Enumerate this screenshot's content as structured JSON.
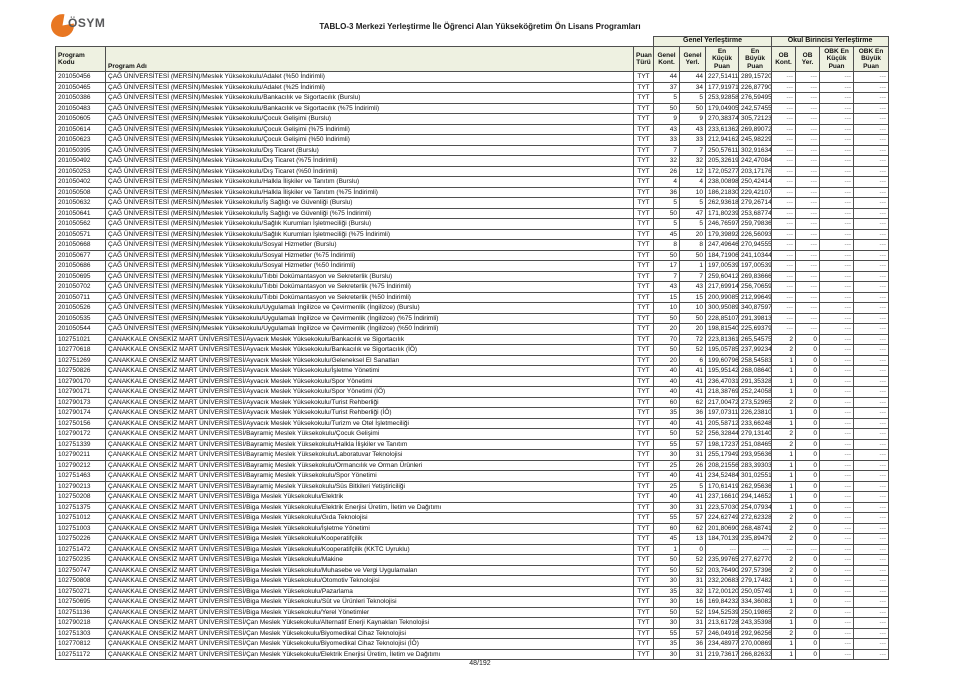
{
  "header": {
    "logo_text": "ÖSYM",
    "title": "TABLO-3 Merkezi Yerleştirme İle Öğrenci Alan Yükseköğretim Ön Lisans Programları"
  },
  "colors": {
    "header_bg": "#eef1e1",
    "border": "#4f4f4f",
    "logo_orange": "#e87722",
    "logo_gray": "#58595b"
  },
  "table": {
    "group_headers": {
      "genel": "Genel Yerleştirme",
      "okul": "Okul Birincisi Yerleştirme"
    },
    "columns": [
      "Program Kodu",
      "Program Adı",
      "Puan Türü",
      "Genel Kont.",
      "Genel Yerl.",
      "En Küçük Puan",
      "En Büyük Puan",
      "OB Kont.",
      "OB Yer.",
      "OBK En Küçük Puan",
      "OBK En Büyük Puan"
    ],
    "empty_value": "---",
    "rows": [
      [
        "201050456",
        "ÇAĞ ÜNİVERSİTESİ (MERSİN)/Meslek Yüksekokulu/Adalet (%50 İndirimli)",
        "TYT",
        "44",
        "44",
        "227,51411",
        "289,15720",
        "---",
        "---",
        "---",
        "---"
      ],
      [
        "201050465",
        "ÇAĞ ÜNİVERSİTESİ (MERSİN)/Meslek Yüksekokulu/Adalet (%25 İndirimli)",
        "TYT",
        "37",
        "34",
        "177,91971",
        "226,87790",
        "---",
        "---",
        "---",
        "---"
      ],
      [
        "201050386",
        "ÇAĞ ÜNİVERSİTESİ (MERSİN)/Meslek Yüksekokulu/Bankacılık ve Sigortacılık (Burslu)",
        "TYT",
        "5",
        "5",
        "253,92858",
        "276,59495",
        "---",
        "---",
        "---",
        "---"
      ],
      [
        "201050483",
        "ÇAĞ ÜNİVERSİTESİ (MERSİN)/Meslek Yüksekokulu/Bankacılık ve Sigortacılık (%75 İndirimli)",
        "TYT",
        "50",
        "50",
        "179,04905",
        "242,57455",
        "---",
        "---",
        "---",
        "---"
      ],
      [
        "201050605",
        "ÇAĞ ÜNİVERSİTESİ (MERSİN)/Meslek Yüksekokulu/Çocuk Gelişimi (Burslu)",
        "TYT",
        "9",
        "9",
        "270,38374",
        "305,72123",
        "---",
        "---",
        "---",
        "---"
      ],
      [
        "201050614",
        "ÇAĞ ÜNİVERSİTESİ (MERSİN)/Meslek Yüksekokulu/Çocuk Gelişimi (%75 İndirimli)",
        "TYT",
        "43",
        "43",
        "233,61362",
        "269,89072",
        "---",
        "---",
        "---",
        "---"
      ],
      [
        "201050623",
        "ÇAĞ ÜNİVERSİTESİ (MERSİN)/Meslek Yüksekokulu/Çocuk Gelişimi (%50 İndirimli)",
        "TYT",
        "33",
        "33",
        "212,94162",
        "245,98229",
        "---",
        "---",
        "---",
        "---"
      ],
      [
        "201050395",
        "ÇAĞ ÜNİVERSİTESİ (MERSİN)/Meslek Yüksekokulu/Dış Ticaret (Burslu)",
        "TYT",
        "7",
        "7",
        "250,57611",
        "302,91634",
        "---",
        "---",
        "---",
        "---"
      ],
      [
        "201050492",
        "ÇAĞ ÜNİVERSİTESİ (MERSİN)/Meslek Yüksekokulu/Dış Ticaret (%75 İndirimli)",
        "TYT",
        "32",
        "32",
        "205,32619",
        "242,47084",
        "---",
        "---",
        "---",
        "---"
      ],
      [
        "201050253",
        "ÇAĞ ÜNİVERSİTESİ (MERSİN)/Meslek Yüksekokulu/Dış Ticaret (%50 İndirimli)",
        "TYT",
        "26",
        "12",
        "172,05277",
        "203,17176",
        "---",
        "---",
        "---",
        "---"
      ],
      [
        "201050402",
        "ÇAĞ ÜNİVERSİTESİ (MERSİN)/Meslek Yüksekokulu/Halkla İlişkiler ve Tanıtım (Burslu)",
        "TYT",
        "4",
        "4",
        "238,00898",
        "250,42414",
        "---",
        "---",
        "---",
        "---"
      ],
      [
        "201050508",
        "ÇAĞ ÜNİVERSİTESİ (MERSİN)/Meslek Yüksekokulu/Halkla İlişkiler ve Tanıtım (%75 İndirimli)",
        "TYT",
        "36",
        "10",
        "186,21830",
        "229,42107",
        "---",
        "---",
        "---",
        "---"
      ],
      [
        "201050632",
        "ÇAĞ ÜNİVERSİTESİ (MERSİN)/Meslek Yüksekokulu/İş Sağlığı ve Güvenliği (Burslu)",
        "TYT",
        "5",
        "5",
        "262,93618",
        "279,26714",
        "---",
        "---",
        "---",
        "---"
      ],
      [
        "201050641",
        "ÇAĞ ÜNİVERSİTESİ (MERSİN)/Meslek Yüksekokulu/İş Sağlığı ve Güvenliği (%75 İndirimli)",
        "TYT",
        "50",
        "47",
        "171,80239",
        "253,68774",
        "---",
        "---",
        "---",
        "---"
      ],
      [
        "201050562",
        "ÇAĞ ÜNİVERSİTESİ (MERSİN)/Meslek Yüksekokulu/Sağlık Kurumları İşletmeciliği (Burslu)",
        "TYT",
        "5",
        "5",
        "246,76597",
        "259,79836",
        "---",
        "---",
        "---",
        "---"
      ],
      [
        "201050571",
        "ÇAĞ ÜNİVERSİTESİ (MERSİN)/Meslek Yüksekokulu/Sağlık Kurumları İşletmeciliği (%75 İndirimli)",
        "TYT",
        "45",
        "20",
        "179,39892",
        "226,56093",
        "---",
        "---",
        "---",
        "---"
      ],
      [
        "201050668",
        "ÇAĞ ÜNİVERSİTESİ (MERSİN)/Meslek Yüksekokulu/Sosyal Hizmetler (Burslu)",
        "TYT",
        "8",
        "8",
        "247,49646",
        "270,94555",
        "---",
        "---",
        "---",
        "---"
      ],
      [
        "201050677",
        "ÇAĞ ÜNİVERSİTESİ (MERSİN)/Meslek Yüksekokulu/Sosyal Hizmetler (%75 İndirimli)",
        "TYT",
        "50",
        "50",
        "184,71906",
        "241,10344",
        "---",
        "---",
        "---",
        "---"
      ],
      [
        "201050686",
        "ÇAĞ ÜNİVERSİTESİ (MERSİN)/Meslek Yüksekokulu/Sosyal Hizmetler (%50 İndirimli)",
        "TYT",
        "17",
        "1",
        "197,00539",
        "197,00539",
        "---",
        "---",
        "---",
        "---"
      ],
      [
        "201050695",
        "ÇAĞ ÜNİVERSİTESİ (MERSİN)/Meslek Yüksekokulu/Tıbbi Dokümantasyon ve Sekreterlik (Burslu)",
        "TYT",
        "7",
        "7",
        "259,60412",
        "269,83666",
        "---",
        "---",
        "---",
        "---"
      ],
      [
        "201050702",
        "ÇAĞ ÜNİVERSİTESİ (MERSİN)/Meslek Yüksekokulu/Tıbbi Dokümantasyon ve Sekreterlik (%75 İndirimli)",
        "TYT",
        "43",
        "43",
        "217,69914",
        "256,70659",
        "---",
        "---",
        "---",
        "---"
      ],
      [
        "201050711",
        "ÇAĞ ÜNİVERSİTESİ (MERSİN)/Meslek Yüksekokulu/Tıbbi Dokümantasyon ve Sekreterlik (%50 İndirimli)",
        "TYT",
        "15",
        "15",
        "200,99085",
        "212,99649",
        "---",
        "---",
        "---",
        "---"
      ],
      [
        "201050526",
        "ÇAĞ ÜNİVERSİTESİ (MERSİN)/Meslek Yüksekokulu/Uygulamalı İngilizce ve Çevirmenlik (İngilizce) (Burslu)",
        "TYT",
        "10",
        "10",
        "300,95089",
        "340,87597",
        "---",
        "---",
        "---",
        "---"
      ],
      [
        "201050535",
        "ÇAĞ ÜNİVERSİTESİ (MERSİN)/Meslek Yüksekokulu/Uygulamalı İngilizce ve Çevirmenlik (İngilizce) (%75 İndirimli)",
        "TYT",
        "50",
        "50",
        "228,85107",
        "291,39813",
        "---",
        "---",
        "---",
        "---"
      ],
      [
        "201050544",
        "ÇAĞ ÜNİVERSİTESİ (MERSİN)/Meslek Yüksekokulu/Uygulamalı İngilizce ve Çevirmenlik (İngilizce) (%50 İndirimli)",
        "TYT",
        "20",
        "20",
        "198,81540",
        "225,69379",
        "---",
        "---",
        "---",
        "---"
      ],
      [
        "102751021",
        "ÇANAKKALE ONSEKİZ MART ÜNİVERSİTESİ/Ayvacık Meslek Yüksekokulu/Bankacılık ve Sigortacılık",
        "TYT",
        "70",
        "72",
        "223,81361",
        "265,54575",
        "2",
        "0",
        "---",
        "---"
      ],
      [
        "102770618",
        "ÇANAKKALE ONSEKİZ MART ÜNİVERSİTESİ/Ayvacık Meslek Yüksekokulu/Bankacılık ve Sigortacılık (İÖ)",
        "TYT",
        "50",
        "52",
        "195,05785",
        "237,99234",
        "2",
        "0",
        "---",
        "---"
      ],
      [
        "102751269",
        "ÇANAKKALE ONSEKİZ MART ÜNİVERSİTESİ/Ayvacık Meslek Yüksekokulu/Geleneksel El Sanatları",
        "TYT",
        "20",
        "6",
        "199,60796",
        "258,54583",
        "1",
        "0",
        "---",
        "---"
      ],
      [
        "102750826",
        "ÇANAKKALE ONSEKİZ MART ÜNİVERSİTESİ/Ayvacık Meslek Yüksekokulu/İşletme Yönetimi",
        "TYT",
        "40",
        "41",
        "195,95142",
        "268,08640",
        "1",
        "0",
        "---",
        "---"
      ],
      [
        "102790170",
        "ÇANAKKALE ONSEKİZ MART ÜNİVERSİTESİ/Ayvacık Meslek Yüksekokulu/Spor Yönetimi",
        "TYT",
        "40",
        "41",
        "236,47031",
        "291,35328",
        "1",
        "0",
        "---",
        "---"
      ],
      [
        "102790171",
        "ÇANAKKALE ONSEKİZ MART ÜNİVERSİTESİ/Ayvacık Meslek Yüksekokulu/Spor Yönetimi (İÖ)",
        "TYT",
        "40",
        "41",
        "218,38769",
        "252,24058",
        "1",
        "0",
        "---",
        "---"
      ],
      [
        "102790173",
        "ÇANAKKALE ONSEKİZ MART ÜNİVERSİTESİ/Ayvacık Meslek Yüksekokulu/Turist Rehberliği",
        "TYT",
        "60",
        "62",
        "217,00472",
        "273,52965",
        "2",
        "0",
        "---",
        "---"
      ],
      [
        "102790174",
        "ÇANAKKALE ONSEKİZ MART ÜNİVERSİTESİ/Ayvacık Meslek Yüksekokulu/Turist Rehberliği (İÖ)",
        "TYT",
        "35",
        "36",
        "197,07311",
        "226,23810",
        "1",
        "0",
        "---",
        "---"
      ],
      [
        "102750156",
        "ÇANAKKALE ONSEKİZ MART ÜNİVERSİTESİ/Ayvacık Meslek Yüksekokulu/Turizm ve Otel İşletmeciliği",
        "TYT",
        "40",
        "41",
        "205,58712",
        "233,66248",
        "1",
        "0",
        "---",
        "---"
      ],
      [
        "102790172",
        "ÇANAKKALE ONSEKİZ MART ÜNİVERSİTESİ/Bayramiç Meslek Yüksekokulu/Çocuk Gelişimi",
        "TYT",
        "50",
        "52",
        "256,32844",
        "279,13140",
        "2",
        "0",
        "---",
        "---"
      ],
      [
        "102751339",
        "ÇANAKKALE ONSEKİZ MART ÜNİVERSİTESİ/Bayramiç Meslek Yüksekokulu/Halkla İlişkiler ve Tanıtım",
        "TYT",
        "55",
        "57",
        "198,17237",
        "251,08465",
        "2",
        "0",
        "---",
        "---"
      ],
      [
        "102790211",
        "ÇANAKKALE ONSEKİZ MART ÜNİVERSİTESİ/Bayramiç Meslek Yüksekokulu/Laboratuvar Teknolojisi",
        "TYT",
        "30",
        "31",
        "255,17949",
        "293,95636",
        "1",
        "0",
        "---",
        "---"
      ],
      [
        "102790212",
        "ÇANAKKALE ONSEKİZ MART ÜNİVERSİTESİ/Bayramiç Meslek Yüksekokulu/Ormancılık ve Orman Ürünleri",
        "TYT",
        "25",
        "26",
        "208,21556",
        "283,39303",
        "1",
        "0",
        "---",
        "---"
      ],
      [
        "102751463",
        "ÇANAKKALE ONSEKİZ MART ÜNİVERSİTESİ/Bayramiç Meslek Yüksekokulu/Spor Yönetimi",
        "TYT",
        "40",
        "41",
        "234,52484",
        "301,02551",
        "1",
        "0",
        "---",
        "---"
      ],
      [
        "102790213",
        "ÇANAKKALE ONSEKİZ MART ÜNİVERSİTESİ/Bayramiç Meslek Yüksekokulu/Süs Bitkileri Yetiştiriciliği",
        "TYT",
        "25",
        "5",
        "170,61419",
        "262,95636",
        "1",
        "0",
        "---",
        "---"
      ],
      [
        "102750208",
        "ÇANAKKALE ONSEKİZ MART ÜNİVERSİTESİ/Biga Meslek Yüksekokulu/Elektrik",
        "TYT",
        "40",
        "41",
        "237,16610",
        "294,14652",
        "1",
        "0",
        "---",
        "---"
      ],
      [
        "102751375",
        "ÇANAKKALE ONSEKİZ MART ÜNİVERSİTESİ/Biga Meslek Yüksekokulu/Elektrik Enerjisi Üretim, İletim ve Dağıtımı",
        "TYT",
        "30",
        "31",
        "223,57030",
        "254,07934",
        "1",
        "0",
        "---",
        "---"
      ],
      [
        "102751012",
        "ÇANAKKALE ONSEKİZ MART ÜNİVERSİTESİ/Biga Meslek Yüksekokulu/Gıda Teknolojisi",
        "TYT",
        "55",
        "57",
        "224,62749",
        "272,62328",
        "2",
        "0",
        "---",
        "---"
      ],
      [
        "102751003",
        "ÇANAKKALE ONSEKİZ MART ÜNİVERSİTESİ/Biga Meslek Yüksekokulu/İşletme Yönetimi",
        "TYT",
        "60",
        "62",
        "201,80690",
        "268,48741",
        "2",
        "0",
        "---",
        "---"
      ],
      [
        "102750226",
        "ÇANAKKALE ONSEKİZ MART ÜNİVERSİTESİ/Biga Meslek Yüksekokulu/Kooperatifçilik",
        "TYT",
        "45",
        "13",
        "184,70139",
        "235,89479",
        "2",
        "0",
        "---",
        "---"
      ],
      [
        "102751472",
        "ÇANAKKALE ONSEKİZ MART ÜNİVERSİTESİ/Biga Meslek Yüksekokulu/Kooperatifçilik (KKTC Uyruklu)",
        "TYT",
        "1",
        "0",
        "---",
        "---",
        "---",
        "---",
        "---",
        "---"
      ],
      [
        "102750235",
        "ÇANAKKALE ONSEKİZ MART ÜNİVERSİTESİ/Biga Meslek Yüksekokulu/Makine",
        "TYT",
        "50",
        "52",
        "235,99765",
        "277,62770",
        "2",
        "0",
        "---",
        "---"
      ],
      [
        "102750747",
        "ÇANAKKALE ONSEKİZ MART ÜNİVERSİTESİ/Biga Meslek Yüksekokulu/Muhasebe ve Vergi Uygulamaları",
        "TYT",
        "50",
        "52",
        "203,76490",
        "297,57396",
        "2",
        "0",
        "---",
        "---"
      ],
      [
        "102750808",
        "ÇANAKKALE ONSEKİZ MART ÜNİVERSİTESİ/Biga Meslek Yüksekokulu/Otomotiv Teknolojisi",
        "TYT",
        "30",
        "31",
        "232,20683",
        "279,17482",
        "1",
        "0",
        "---",
        "---"
      ],
      [
        "102750271",
        "ÇANAKKALE ONSEKİZ MART ÜNİVERSİTESİ/Biga Meslek Yüksekokulu/Pazarlama",
        "TYT",
        "35",
        "32",
        "172,00120",
        "250,05749",
        "1",
        "0",
        "---",
        "---"
      ],
      [
        "102750695",
        "ÇANAKKALE ONSEKİZ MART ÜNİVERSİTESİ/Biga Meslek Yüksekokulu/Süt ve Ürünleri Teknolojisi",
        "TYT",
        "30",
        "16",
        "169,84232",
        "334,36082",
        "1",
        "0",
        "---",
        "---"
      ],
      [
        "102751136",
        "ÇANAKKALE ONSEKİZ MART ÜNİVERSİTESİ/Biga Meslek Yüksekokulu/Yerel Yönetimler",
        "TYT",
        "50",
        "52",
        "194,52539",
        "250,19865",
        "2",
        "0",
        "---",
        "---"
      ],
      [
        "102790218",
        "ÇANAKKALE ONSEKİZ MART ÜNİVERSİTESİ/Çan Meslek Yüksekokulu/Alternatif Enerji Kaynakları Teknolojisi",
        "TYT",
        "30",
        "31",
        "213,61728",
        "243,35398",
        "1",
        "0",
        "---",
        "---"
      ],
      [
        "102751303",
        "ÇANAKKALE ONSEKİZ MART ÜNİVERSİTESİ/Çan Meslek Yüksekokulu/Biyomedikal Cihaz Teknolojisi",
        "TYT",
        "55",
        "57",
        "246,04916",
        "292,96256",
        "2",
        "0",
        "---",
        "---"
      ],
      [
        "102770812",
        "ÇANAKKALE ONSEKİZ MART ÜNİVERSİTESİ/Çan Meslek Yüksekokulu/Biyomedikal Cihaz Teknolojisi (İÖ)",
        "TYT",
        "35",
        "36",
        "234,48977",
        "270,00869",
        "1",
        "0",
        "---",
        "---"
      ],
      [
        "102751172",
        "ÇANAKKALE ONSEKİZ MART ÜNİVERSİTESİ/Çan Meslek Yüksekokulu/Elektrik Enerjisi Üretim, İletim ve Dağıtımı",
        "TYT",
        "30",
        "31",
        "219,73617",
        "266,82632",
        "1",
        "0",
        "---",
        "---"
      ]
    ]
  },
  "footer": {
    "page_indicator": "48/192"
  }
}
